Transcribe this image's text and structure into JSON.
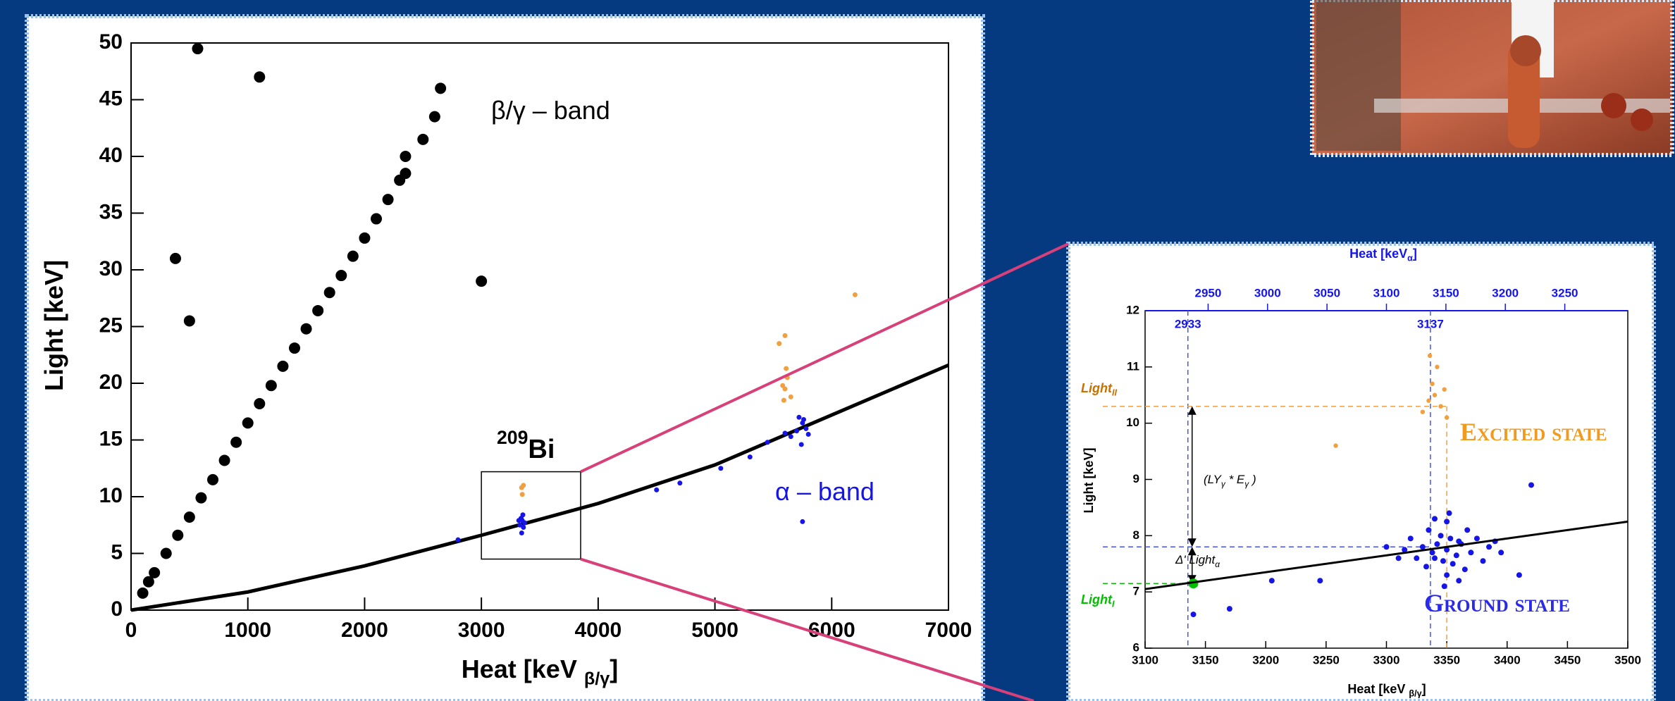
{
  "chart_data": [
    {
      "type": "scatter",
      "xlabel": [
        {
          "text": "Heat [keV "
        },
        {
          "text": "β/γ",
          "sub": true
        },
        {
          "text": "]"
        }
      ],
      "ylabel": [
        {
          "text": "Light [keV]"
        }
      ],
      "xlim": [
        0,
        7000
      ],
      "ylim": [
        0,
        50
      ],
      "xticks": [
        0,
        1000,
        2000,
        3000,
        4000,
        5000,
        6000,
        7000
      ],
      "yticks": [
        0,
        5,
        10,
        15,
        20,
        25,
        30,
        35,
        40,
        45,
        50
      ],
      "series": [
        {
          "color": "#000000",
          "mode": "markers",
          "x": [
            100,
            150,
            200,
            300,
            400,
            500,
            600,
            700,
            800,
            900,
            1000,
            1100,
            1200,
            1300,
            1400,
            1500,
            1600,
            1700,
            1800,
            1900,
            2000,
            2100,
            2200,
            2300,
            2350,
            2350,
            2500,
            2600,
            2650,
            570,
            1100,
            380,
            3000,
            500
          ],
          "values": [
            1.5,
            2.5,
            3.3,
            5,
            6.6,
            8.2,
            9.9,
            11.5,
            13.2,
            14.8,
            16.5,
            18.2,
            19.8,
            21.5,
            23.1,
            24.8,
            26.4,
            28,
            29.5,
            31.2,
            32.8,
            34.5,
            36.2,
            37.9,
            38.5,
            40,
            41.5,
            43.5,
            46,
            49.5,
            47,
            31,
            29,
            25.5
          ]
        },
        {
          "color": "#000000",
          "mode": "line",
          "x": [
            0,
            1000,
            2000,
            3000,
            4000,
            5000,
            6000,
            7000
          ],
          "values": [
            0,
            1.6,
            3.9,
            6.6,
            9.4,
            12.8,
            17.2,
            21.6
          ]
        },
        {
          "color": "#1515e8",
          "mode": "markers",
          "x": [
            3330,
            3350,
            3360,
            3340,
            3370,
            3320,
            3345,
            3355,
            4500,
            4700,
            5050,
            5300,
            5450,
            5600,
            5700,
            5750,
            5780,
            5720,
            5800,
            5740,
            5650,
            5760,
            2800,
            5750
          ],
          "values": [
            7.5,
            7.9,
            7.3,
            8.1,
            7.7,
            7.9,
            6.8,
            8.4,
            10.6,
            11.2,
            12.5,
            13.5,
            14.8,
            15.6,
            15.8,
            16.5,
            16,
            17,
            15.5,
            14.6,
            15.3,
            16.8,
            6.2,
            7.8
          ]
        },
        {
          "color": "#f0a040",
          "mode": "markers",
          "x": [
            3350,
            3345,
            3360,
            5600,
            5620,
            5590,
            5610,
            5580,
            5650,
            5550,
            5600,
            6200
          ],
          "values": [
            10.2,
            10.8,
            11,
            19.5,
            20.5,
            18.5,
            21.3,
            19.8,
            18.8,
            23.5,
            24.2,
            27.8
          ]
        }
      ],
      "zoom_box": {
        "x": [
          3000,
          3850
        ],
        "y": [
          4.5,
          12.2
        ]
      },
      "annotations": [
        {
          "parts": [
            {
              "text": "β/γ – band"
            }
          ],
          "color": "#000000"
        },
        {
          "parts": [
            {
              "text": "209",
              "sup": true
            },
            {
              "text": "Bi"
            }
          ],
          "color": "#000000"
        },
        {
          "parts": [
            {
              "text": "α – band"
            }
          ],
          "color": "#1515e8"
        }
      ]
    },
    {
      "type": "scatter",
      "xlabel": [
        {
          "text": "Heat [keV "
        },
        {
          "text": "β/γ",
          "sub": true
        },
        {
          "text": "]"
        }
      ],
      "ylabel": [
        {
          "text": "Light [keV]"
        }
      ],
      "x2label": [
        {
          "text": "Heat [keV"
        },
        {
          "text": "α",
          "sub": true
        },
        {
          "text": "]"
        }
      ],
      "xlim": [
        3100,
        3500
      ],
      "ylim": [
        6,
        12
      ],
      "xticks": [
        3100,
        3150,
        3200,
        3250,
        3300,
        3350,
        3400,
        3450,
        3500
      ],
      "yticks": [
        6,
        7,
        8,
        9,
        10,
        11,
        12
      ],
      "x2lim": [
        2897,
        3303
      ],
      "x2ticks": [
        2950,
        3000,
        3050,
        3100,
        3150,
        3200,
        3250
      ],
      "x2color": "#1515e8",
      "series": [
        {
          "color": "#1515e8",
          "mode": "markers",
          "x": [
            3350,
            3340,
            3360,
            3330,
            3370,
            3345,
            3355,
            3325,
            3375,
            3335,
            3365,
            3350,
            3350,
            3315,
            3385,
            3342,
            3358,
            3320,
            3380,
            3310,
            3390,
            3340,
            3360,
            3300,
            3395,
            3347,
            3353,
            3333,
            3367,
            3338,
            3362,
            3352,
            3348,
            3140,
            3170,
            3205,
            3245,
            3420,
            3410
          ],
          "values": [
            7.75,
            7.6,
            7.9,
            7.8,
            7.7,
            8,
            7.5,
            7.6,
            7.95,
            8.1,
            7.4,
            8.25,
            7.3,
            7.75,
            7.8,
            7.85,
            7.65,
            7.95,
            7.55,
            7.6,
            7.9,
            8.3,
            7.2,
            7.8,
            7.7,
            7.55,
            7.95,
            7.45,
            8.1,
            7.7,
            7.85,
            8.4,
            7.1,
            6.6,
            6.7,
            7.2,
            7.2,
            8.9,
            7.3
          ]
        },
        {
          "color": "#f0a040",
          "mode": "markers",
          "x": [
            3335,
            3340,
            3345,
            3330,
            3338,
            3342,
            3336,
            3350,
            3348,
            3258
          ],
          "values": [
            10.4,
            10.5,
            10.3,
            10.2,
            10.7,
            11,
            11.2,
            10.1,
            10.6,
            9.6
          ]
        },
        {
          "color": "#00c000",
          "mode": "markers",
          "x": [
            3140
          ],
          "values": [
            7.15
          ]
        },
        {
          "color": "#000000",
          "mode": "line",
          "x": [
            3100,
            3500
          ],
          "values": [
            7.05,
            8.25
          ]
        }
      ],
      "vlines": [
        {
          "value": 2933,
          "axis": "x2",
          "color": "#4455ee"
        },
        {
          "value": 3137,
          "axis": "x2",
          "color": "#4455ee"
        },
        {
          "value": 3350,
          "color": "#f0a040"
        }
      ],
      "hlines": [
        {
          "value": 10.3,
          "color": "#f0a040"
        },
        {
          "value": 7.8,
          "color": "#4455ee"
        },
        {
          "value": 7.15,
          "color": "#00c000"
        }
      ],
      "annotations": [
        {
          "parts": [
            {
              "text": "Light"
            },
            {
              "text": "II",
              "sub": true
            }
          ],
          "color": "#c87000"
        },
        {
          "parts": [
            {
              "text": "Light"
            },
            {
              "text": "I",
              "sub": true
            }
          ],
          "color": "#00c000"
        },
        {
          "parts": [
            {
              "text": "(LY"
            },
            {
              "text": "γ",
              "sub": true
            },
            {
              "text": " * E"
            },
            {
              "text": "γ",
              "sub": true
            },
            {
              "text": " )"
            }
          ],
          "color": "#000000"
        },
        {
          "parts": [
            {
              "text": "Δ' Light"
            },
            {
              "text": "α",
              "sub": true
            }
          ],
          "color": "#000000"
        },
        {
          "parts": [
            {
              "text": "Excited state"
            }
          ],
          "color": "#f09a20"
        },
        {
          "parts": [
            {
              "text": "Ground state"
            }
          ],
          "color": "#2a2ae8"
        }
      ]
    }
  ]
}
